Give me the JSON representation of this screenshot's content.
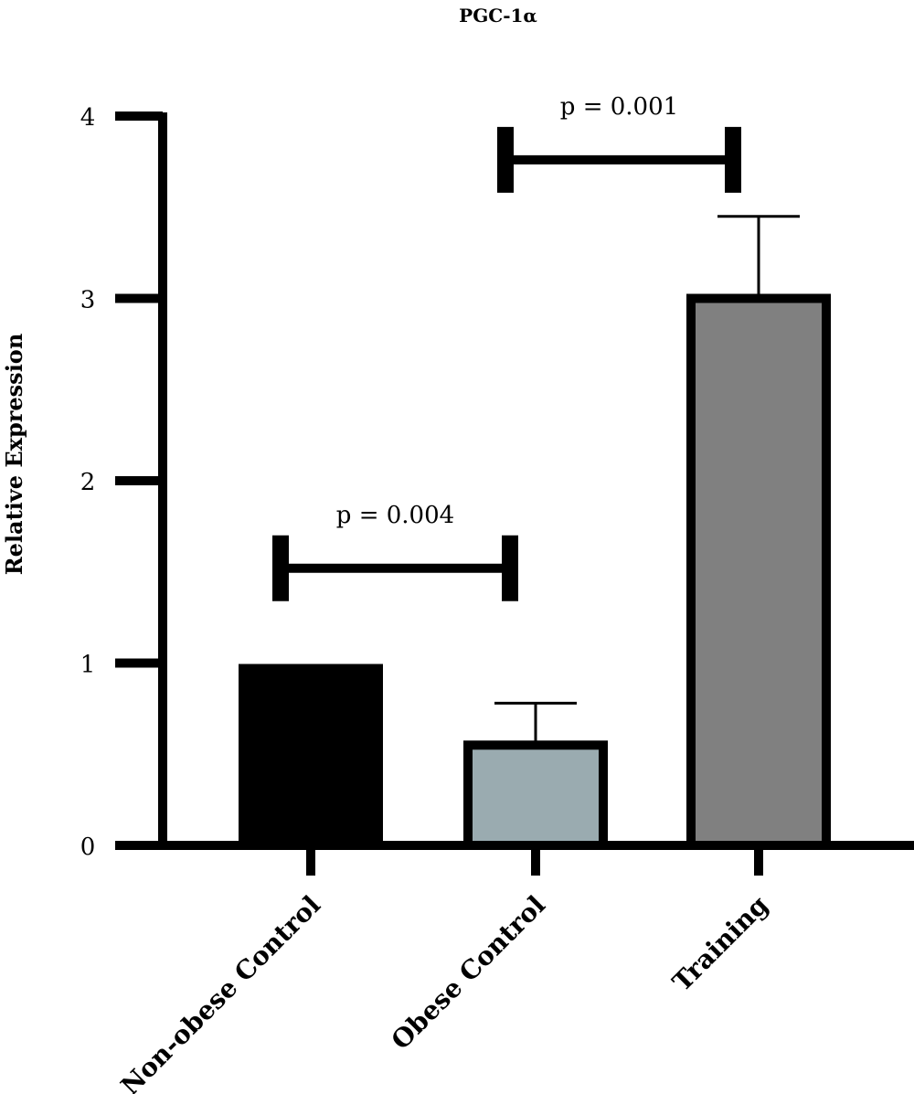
{
  "chart_data": {
    "type": "bar",
    "title": "PGC-1α",
    "xlabel": "",
    "ylabel": "Relative Expression",
    "ylim": [
      0,
      4
    ],
    "yticks": [
      "0",
      "1",
      "2",
      "3",
      "4"
    ],
    "categories": [
      "Non-obese Control",
      "Obese Control",
      "Training"
    ],
    "values": [
      0.97,
      0.55,
      3.0
    ],
    "error_upper": [
      0.98,
      0.78,
      3.45
    ],
    "colors": [
      "#000000",
      "#9aabb0",
      "#808080"
    ],
    "significance": [
      {
        "from": 0,
        "to": 1,
        "label": "p = 0.004",
        "y": 1.52
      },
      {
        "from": 1,
        "to": 2,
        "label": "p = 0.001",
        "y": 3.76
      }
    ],
    "grid": false,
    "legend": "none"
  }
}
